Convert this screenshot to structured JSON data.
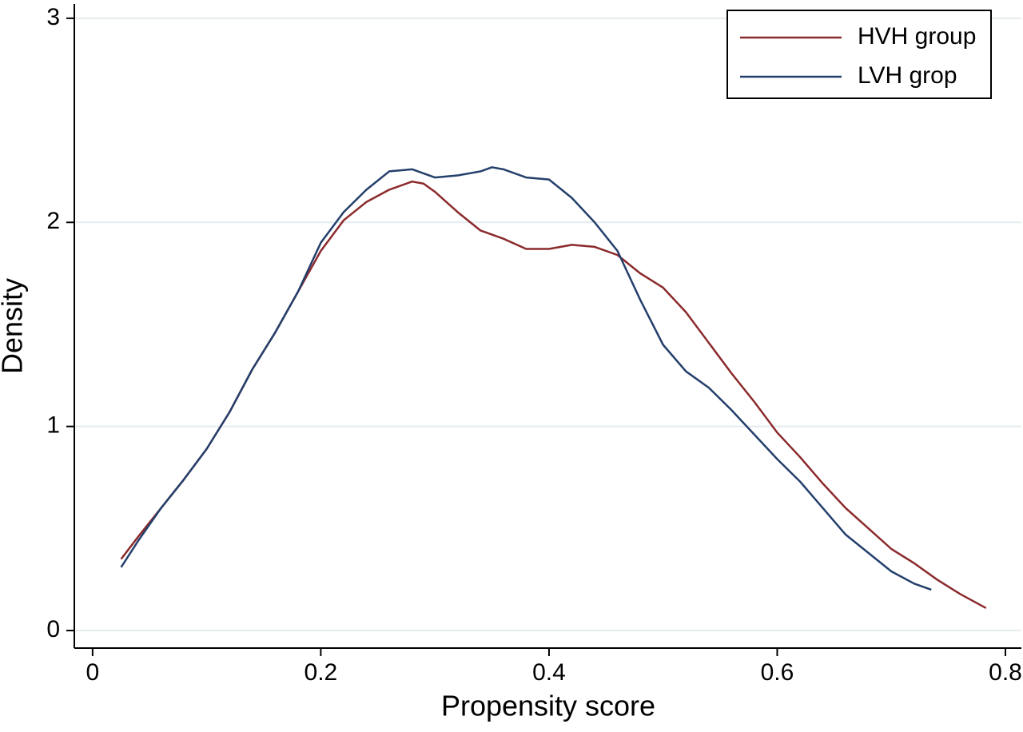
{
  "chart_data": {
    "type": "line",
    "x_label": "Propensity score",
    "y_label": "Density",
    "xlim": [
      -0.016,
      0.814
    ],
    "ylim": [
      -0.086,
      3.07
    ],
    "xticks": [
      0,
      0.2,
      0.4,
      0.6,
      0.8
    ],
    "yticks": [
      0,
      1,
      2,
      3
    ],
    "grid": true,
    "legend": "top-right",
    "series": [
      {
        "name": "HVH group",
        "color": "#8b2a2c",
        "x": [
          0.025,
          0.04,
          0.06,
          0.08,
          0.1,
          0.12,
          0.14,
          0.16,
          0.18,
          0.2,
          0.22,
          0.24,
          0.26,
          0.28,
          0.29,
          0.3,
          0.32,
          0.34,
          0.36,
          0.38,
          0.4,
          0.42,
          0.44,
          0.46,
          0.48,
          0.5,
          0.52,
          0.54,
          0.56,
          0.58,
          0.6,
          0.62,
          0.64,
          0.66,
          0.68,
          0.7,
          0.72,
          0.74,
          0.76,
          0.783
        ],
        "values": [
          0.35,
          0.46,
          0.6,
          0.74,
          0.89,
          1.07,
          1.28,
          1.46,
          1.66,
          1.86,
          2.01,
          2.1,
          2.16,
          2.2,
          2.19,
          2.15,
          2.05,
          1.96,
          1.92,
          1.87,
          1.87,
          1.89,
          1.88,
          1.84,
          1.75,
          1.68,
          1.56,
          1.41,
          1.26,
          1.12,
          0.97,
          0.85,
          0.72,
          0.6,
          0.5,
          0.4,
          0.33,
          0.25,
          0.18,
          0.11
        ]
      },
      {
        "name": "LVH grop",
        "color": "#243f6b",
        "x": [
          0.025,
          0.04,
          0.06,
          0.08,
          0.1,
          0.12,
          0.14,
          0.16,
          0.18,
          0.2,
          0.22,
          0.24,
          0.26,
          0.28,
          0.3,
          0.32,
          0.34,
          0.35,
          0.36,
          0.38,
          0.4,
          0.42,
          0.44,
          0.46,
          0.48,
          0.5,
          0.52,
          0.54,
          0.56,
          0.58,
          0.6,
          0.62,
          0.64,
          0.66,
          0.68,
          0.7,
          0.72,
          0.735
        ],
        "values": [
          0.31,
          0.44,
          0.6,
          0.74,
          0.89,
          1.07,
          1.28,
          1.46,
          1.66,
          1.9,
          2.05,
          2.16,
          2.25,
          2.26,
          2.22,
          2.23,
          2.25,
          2.27,
          2.26,
          2.22,
          2.21,
          2.12,
          2.0,
          1.86,
          1.62,
          1.4,
          1.27,
          1.19,
          1.08,
          0.96,
          0.84,
          0.73,
          0.6,
          0.47,
          0.38,
          0.29,
          0.23,
          0.2
        ]
      }
    ]
  }
}
